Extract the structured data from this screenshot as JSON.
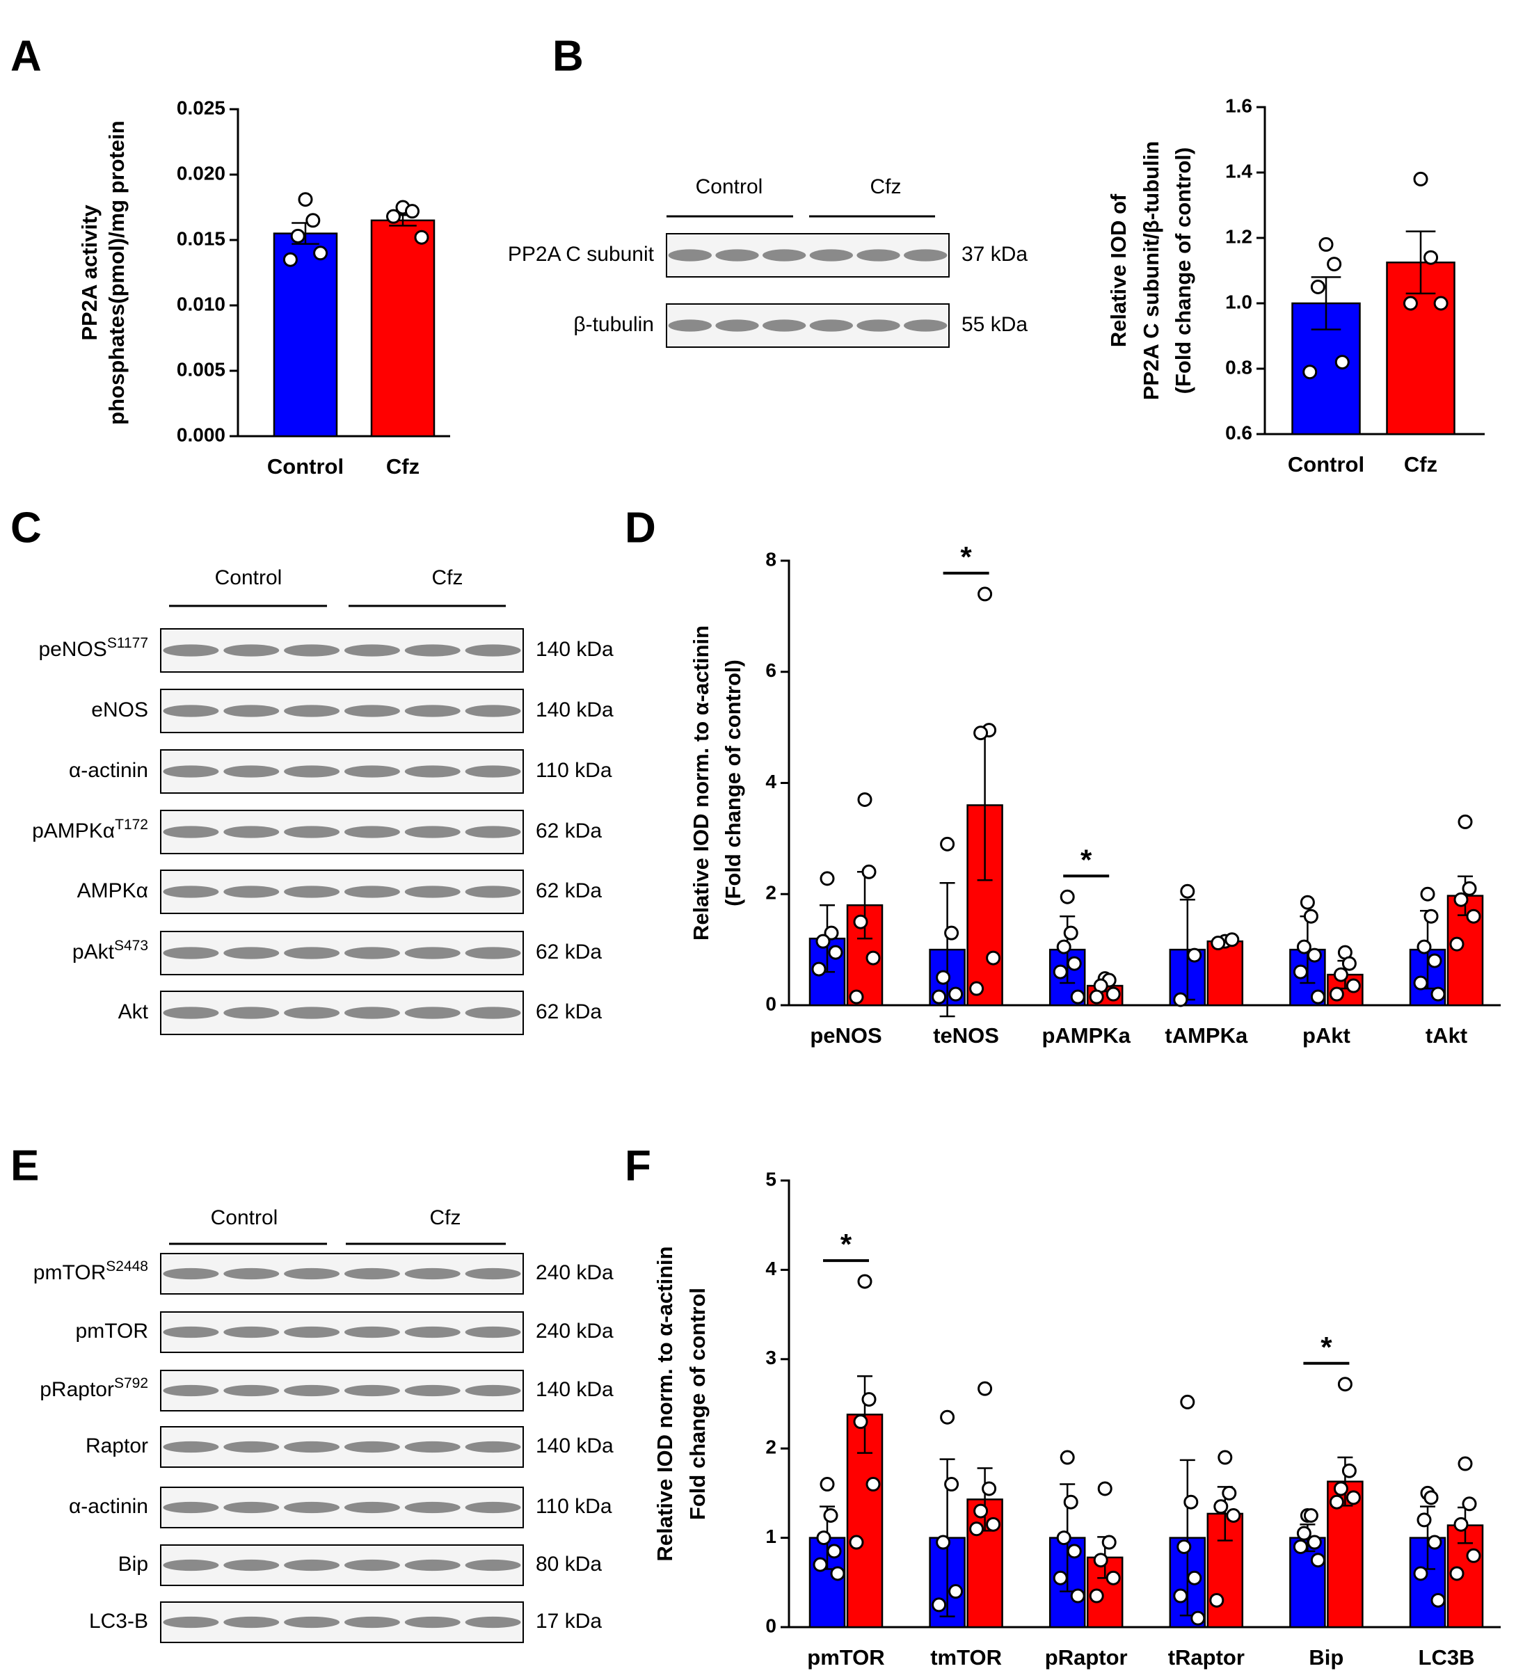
{
  "panel_labels": [
    "A",
    "B",
    "C",
    "D",
    "E",
    "F"
  ],
  "chart_data": [
    {
      "type": "bar",
      "ylabel": [
        "PP2A activity",
        "phosphates(pmol)/mg protein"
      ],
      "categories": [
        "Control",
        "Cfz"
      ],
      "colors": [
        "#0000ff",
        "#ff0000"
      ],
      "values": [
        0.0155,
        0.0165
      ],
      "errors": [
        0.0008,
        0.0004
      ],
      "points": [
        [
          0.0181,
          0.0165,
          0.0153,
          0.014,
          0.0135
        ],
        [
          0.0175,
          0.0172,
          0.0168,
          0.0152
        ]
      ],
      "ylim": [
        0,
        0.025
      ],
      "yticks": [
        {
          "value": 0,
          "label": "0.000"
        },
        {
          "value": 0.005,
          "label": "0.005"
        },
        {
          "value": 0.01,
          "label": "0.010"
        },
        {
          "value": 0.015,
          "label": "0.015"
        },
        {
          "value": 0.02,
          "label": "0.020"
        },
        {
          "value": 0.025,
          "label": "0.025"
        }
      ]
    },
    {
      "type": "bar",
      "ylabel": [
        "Relative IOD of",
        "PP2A  C subunit/β-tubulin",
        "(Fold change of control)"
      ],
      "categories": [
        "Control",
        "Cfz"
      ],
      "colors": [
        "#0000ff",
        "#ff0000"
      ],
      "values": [
        1.0,
        1.125
      ],
      "errors": [
        0.08,
        0.095
      ],
      "points": [
        [
          1.18,
          1.12,
          1.05,
          0.82,
          0.79
        ],
        [
          1.38,
          1.14,
          1.0,
          1.0
        ]
      ],
      "ylim": [
        0.6,
        1.6
      ],
      "yticks": [
        0.6,
        0.8,
        {
          "value": 1,
          "label": "1.0"
        },
        1.2,
        1.4,
        1.6
      ]
    },
    {
      "type": "bar",
      "ylabel": [
        "Relative IOD norm. to α-actinin",
        "(Fold change of control)"
      ],
      "categories": [
        "peNOS",
        "teNOS",
        "pAMPKa",
        "tAMPKa",
        "pAkt",
        "tAkt"
      ],
      "series": [
        {
          "color": "#0000ff",
          "values": [
            1.2,
            1.0,
            1.0,
            1.0,
            1.0,
            1.0
          ],
          "errors": [
            0.6,
            1.2,
            0.6,
            0.9,
            0.6,
            0.7
          ],
          "points": [
            [
              2.28,
              1.3,
              1.15,
              0.95,
              0.65
            ],
            [
              2.9,
              1.3,
              0.5,
              0.2,
              0.15
            ],
            [
              1.95,
              1.3,
              1.05,
              0.75,
              0.6,
              0.15
            ],
            [
              2.05,
              0.9,
              0.1
            ],
            [
              1.85,
              1.6,
              1.05,
              0.9,
              0.6,
              0.15
            ],
            [
              2.0,
              1.6,
              1.05,
              0.8,
              0.4,
              0.2
            ]
          ]
        },
        {
          "color": "#ff0000",
          "values": [
            1.8,
            3.6,
            0.35,
            1.15,
            0.55,
            1.97
          ],
          "errors": [
            0.6,
            1.35,
            0.1,
            0.03,
            0.25,
            0.35
          ],
          "points": [
            [
              3.7,
              2.4,
              1.5,
              0.85,
              0.15
            ],
            [
              7.4,
              4.95,
              4.9,
              0.85,
              0.3
            ],
            [
              0.48,
              0.45,
              0.35,
              0.2,
              0.15
            ],
            [
              1.15,
              1.18,
              1.12
            ],
            [
              0.95,
              0.75,
              0.55,
              0.35,
              0.2
            ],
            [
              3.3,
              2.1,
              1.9,
              1.6,
              1.1
            ]
          ]
        }
      ],
      "significance": [
        null,
        "*",
        "*",
        null,
        null,
        null
      ],
      "ylim": [
        0,
        8
      ],
      "yticks": [
        0,
        2,
        4,
        6,
        8
      ]
    },
    {
      "type": "bar",
      "ylabel": [
        "Relative IOD norm. to α-actinin",
        "Fold change of control"
      ],
      "categories": [
        "pmTOR",
        "tmTOR",
        "pRaptor",
        "tRaptor",
        "Bip",
        "LC3B"
      ],
      "series": [
        {
          "color": "#0000ff",
          "values": [
            1.0,
            1.0,
            1.0,
            1.0,
            1.0,
            1.0
          ],
          "errors": [
            0.35,
            0.88,
            0.6,
            0.87,
            0.15,
            0.35
          ],
          "points": [
            [
              1.6,
              1.25,
              1.0,
              0.85,
              0.7,
              0.6
            ],
            [
              2.35,
              1.6,
              0.95,
              0.4,
              0.25
            ],
            [
              1.9,
              1.4,
              1.0,
              0.85,
              0.55,
              0.35
            ],
            [
              2.52,
              1.4,
              0.9,
              0.55,
              0.35,
              0.1
            ],
            [
              1.25,
              1.25,
              1.05,
              0.95,
              0.9,
              0.75
            ],
            [
              1.5,
              1.45,
              1.2,
              0.95,
              0.6,
              0.3
            ]
          ]
        },
        {
          "color": "#ff0000",
          "values": [
            2.38,
            1.43,
            0.78,
            1.27,
            1.63,
            1.14
          ],
          "errors": [
            0.43,
            0.35,
            0.23,
            0.3,
            0.27,
            0.2
          ],
          "points": [
            [
              3.87,
              2.55,
              2.3,
              1.6,
              0.95
            ],
            [
              2.67,
              1.55,
              1.3,
              1.15,
              1.1
            ],
            [
              1.55,
              0.95,
              0.75,
              0.55,
              0.35
            ],
            [
              1.9,
              1.5,
              1.35,
              1.25,
              0.3
            ],
            [
              2.72,
              1.75,
              1.55,
              1.45,
              1.4
            ],
            [
              1.83,
              1.38,
              1.15,
              0.8,
              0.6
            ]
          ]
        }
      ],
      "significance": [
        "*",
        null,
        null,
        null,
        "*",
        null
      ],
      "ylim": [
        0,
        5
      ],
      "yticks": [
        0,
        1,
        2,
        3,
        4,
        5
      ]
    }
  ],
  "blots": [
    {
      "groups": [
        "Control",
        "Cfz"
      ],
      "rows": [
        {
          "label": "PP2A C subunit",
          "kda": "37 kDa"
        },
        {
          "label": "β-tubulin",
          "kda": "55 kDa"
        }
      ]
    },
    {
      "groups": [
        "Control",
        "Cfz"
      ],
      "rows": [
        {
          "label": "peNOS",
          "sup": "S1177",
          "kda": "140 kDa"
        },
        {
          "label": "eNOS",
          "kda": "140 kDa"
        },
        {
          "label": "α-actinin",
          "kda": "110 kDa"
        },
        {
          "label": "pAMPKα",
          "sup": "T172",
          "kda": "62 kDa"
        },
        {
          "label": "AMPKα",
          "kda": "62 kDa"
        },
        {
          "label": "pAkt",
          "sup": "S473",
          "kda": "62 kDa"
        },
        {
          "label": "Akt",
          "kda": "62 kDa"
        }
      ]
    },
    {
      "groups": [
        "Control",
        "Cfz"
      ],
      "rows": [
        {
          "label": "pmTOR",
          "sup": "S2448",
          "kda": "240 kDa"
        },
        {
          "label": "pmTOR",
          "kda": "240 kDa"
        },
        {
          "label": "pRaptor",
          "sup": "S792",
          "kda": "140 kDa"
        },
        {
          "label": "Raptor",
          "kda": "140 kDa"
        },
        {
          "label": "α-actinin",
          "kda": "110 kDa"
        },
        {
          "label": "Bip",
          "kda": "80 kDa"
        },
        {
          "label": "LC3-B",
          "kda": "17 kDa"
        }
      ]
    }
  ]
}
